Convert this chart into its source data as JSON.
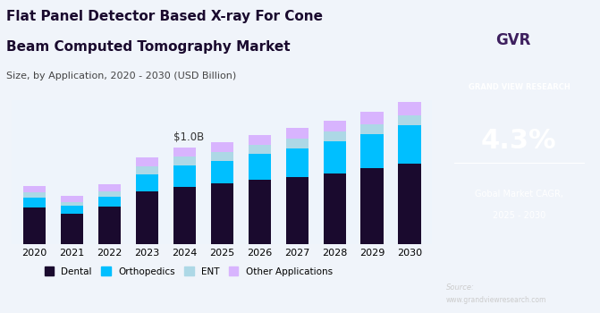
{
  "years": [
    2020,
    2021,
    2022,
    2023,
    2024,
    2025,
    2026,
    2027,
    2028,
    2029,
    2030
  ],
  "dental": [
    0.38,
    0.32,
    0.39,
    0.55,
    0.6,
    0.63,
    0.67,
    0.7,
    0.74,
    0.79,
    0.84
  ],
  "orthopedics": [
    0.1,
    0.08,
    0.1,
    0.18,
    0.22,
    0.24,
    0.27,
    0.3,
    0.33,
    0.36,
    0.4
  ],
  "ent": [
    0.06,
    0.04,
    0.06,
    0.08,
    0.09,
    0.09,
    0.09,
    0.1,
    0.1,
    0.1,
    0.1
  ],
  "other": [
    0.07,
    0.06,
    0.07,
    0.09,
    0.1,
    0.1,
    0.11,
    0.11,
    0.12,
    0.13,
    0.14
  ],
  "dental_color": "#1a0a2e",
  "orthopedics_color": "#00bfff",
  "ent_color": "#add8e6",
  "other_color": "#d8b4fe",
  "bg_color": "#eef4fb",
  "annotation_text": "$1.0B",
  "annotation_year_index": 4,
  "title_line1": "Flat Panel Detector Based X-ray For Cone",
  "title_line2": "Beam Computed Tomography Market",
  "subtitle": "Size, by Application, 2020 - 2030 (USD Billion)",
  "legend_labels": [
    "Dental",
    "Orthopedics",
    "ENT",
    "Other Applications"
  ],
  "bar_width": 0.6,
  "ylim": [
    0,
    1.5
  ]
}
